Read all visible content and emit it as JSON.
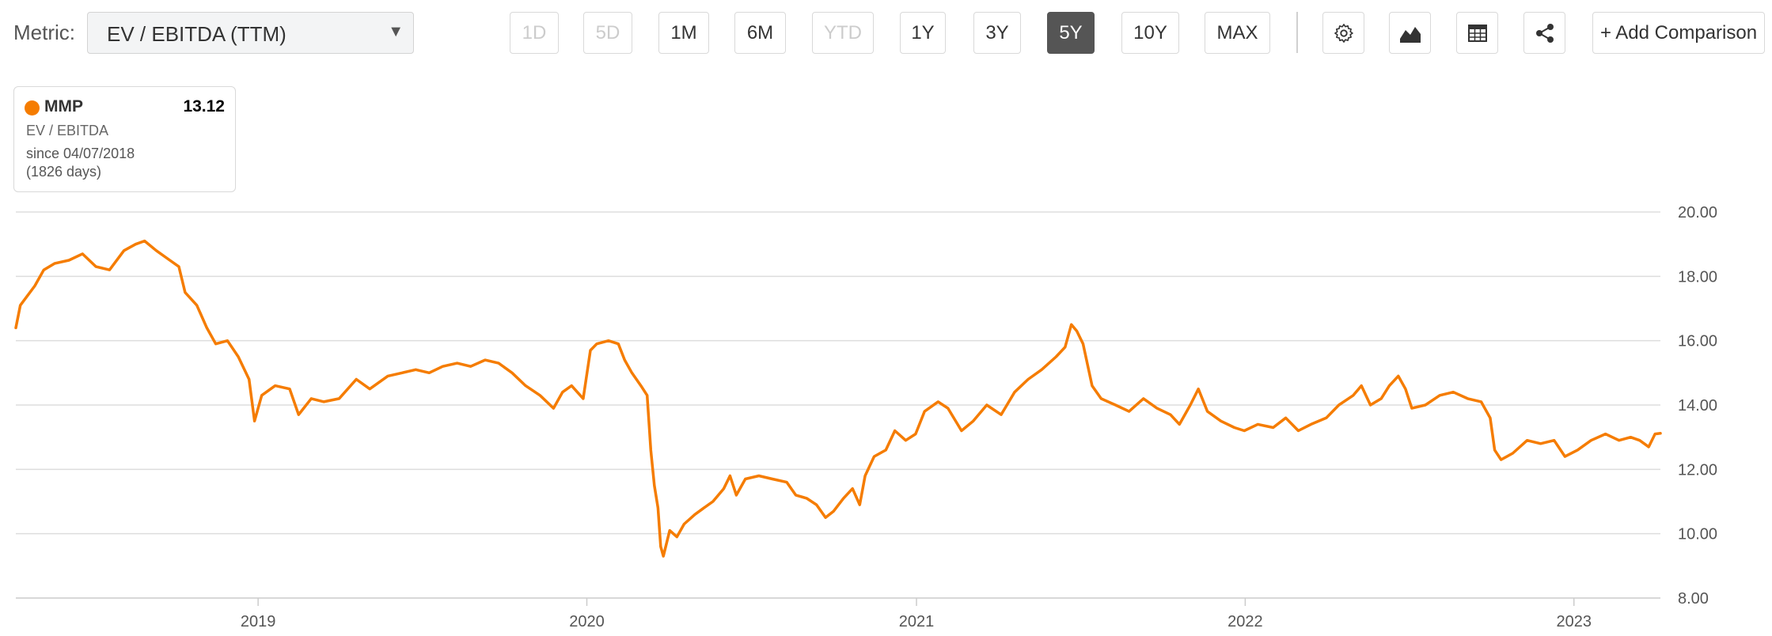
{
  "toolbar": {
    "metric_label": "Metric:",
    "metric_value": "EV / EBITDA (TTM)",
    "ranges": [
      {
        "label": "1D",
        "state": "disabled"
      },
      {
        "label": "5D",
        "state": "disabled"
      },
      {
        "label": "1M",
        "state": "normal"
      },
      {
        "label": "6M",
        "state": "normal"
      },
      {
        "label": "YTD",
        "state": "disabled"
      },
      {
        "label": "1Y",
        "state": "normal"
      },
      {
        "label": "3Y",
        "state": "normal"
      },
      {
        "label": "5Y",
        "state": "active"
      },
      {
        "label": "10Y",
        "state": "normal"
      },
      {
        "label": "MAX",
        "state": "normal"
      }
    ],
    "icons": [
      "gear-icon",
      "chart-type-icon",
      "table-icon",
      "share-icon"
    ],
    "add_comparison": "+ Add Comparison"
  },
  "legend": {
    "ticker": "MMP",
    "value": "13.12",
    "metric": "EV / EBITDA",
    "since": "since 04/07/2018",
    "days": "(1826 days)"
  },
  "colors": {
    "series": "#f57c00",
    "active_button": "#555555",
    "grid": "#dddddd"
  },
  "chart_data": {
    "type": "line",
    "title": "",
    "xlabel": "",
    "ylabel": "",
    "ylim": [
      8,
      20
    ],
    "xlim": [
      "2018-04-07",
      "2023-04-07"
    ],
    "y_ticks": [
      "8.00",
      "10.00",
      "12.00",
      "14.00",
      "16.00",
      "18.00",
      "20.00"
    ],
    "x_ticks": [
      {
        "label": "2019",
        "date": "2019-01-01"
      },
      {
        "label": "2020",
        "date": "2020-01-01"
      },
      {
        "label": "2021",
        "date": "2021-01-01"
      },
      {
        "label": "2022",
        "date": "2022-01-01"
      },
      {
        "label": "2023",
        "date": "2023-01-01"
      }
    ],
    "grid": "horizontal",
    "y_axis_position": "right",
    "legend_position": "top-left",
    "series": [
      {
        "name": "MMP",
        "points": [
          [
            "2018-04-07",
            16.4
          ],
          [
            "2018-04-12",
            17.1
          ],
          [
            "2018-04-20",
            17.4
          ],
          [
            "2018-04-28",
            17.7
          ],
          [
            "2018-05-08",
            18.2
          ],
          [
            "2018-05-20",
            18.4
          ],
          [
            "2018-06-05",
            18.5
          ],
          [
            "2018-06-20",
            18.7
          ],
          [
            "2018-07-05",
            18.3
          ],
          [
            "2018-07-20",
            18.2
          ],
          [
            "2018-08-05",
            18.8
          ],
          [
            "2018-08-18",
            19.0
          ],
          [
            "2018-08-28",
            19.1
          ],
          [
            "2018-09-10",
            18.8
          ],
          [
            "2018-09-25",
            18.5
          ],
          [
            "2018-10-05",
            18.3
          ],
          [
            "2018-10-12",
            17.5
          ],
          [
            "2018-10-25",
            17.1
          ],
          [
            "2018-11-05",
            16.4
          ],
          [
            "2018-11-15",
            15.9
          ],
          [
            "2018-11-28",
            16.0
          ],
          [
            "2018-12-10",
            15.5
          ],
          [
            "2018-12-22",
            14.8
          ],
          [
            "2018-12-28",
            13.5
          ],
          [
            "2019-01-05",
            14.3
          ],
          [
            "2019-01-20",
            14.6
          ],
          [
            "2019-02-05",
            14.5
          ],
          [
            "2019-02-15",
            13.7
          ],
          [
            "2019-03-01",
            14.2
          ],
          [
            "2019-03-15",
            14.1
          ],
          [
            "2019-04-01",
            14.2
          ],
          [
            "2019-04-20",
            14.8
          ],
          [
            "2019-05-05",
            14.5
          ],
          [
            "2019-05-25",
            14.9
          ],
          [
            "2019-06-10",
            15.0
          ],
          [
            "2019-06-25",
            15.1
          ],
          [
            "2019-07-10",
            15.0
          ],
          [
            "2019-07-25",
            15.2
          ],
          [
            "2019-08-10",
            15.3
          ],
          [
            "2019-08-25",
            15.2
          ],
          [
            "2019-09-10",
            15.4
          ],
          [
            "2019-09-25",
            15.3
          ],
          [
            "2019-10-10",
            15.0
          ],
          [
            "2019-10-25",
            14.6
          ],
          [
            "2019-11-10",
            14.3
          ],
          [
            "2019-11-25",
            13.9
          ],
          [
            "2019-12-05",
            14.4
          ],
          [
            "2019-12-15",
            14.6
          ],
          [
            "2019-12-28",
            14.2
          ],
          [
            "2020-01-05",
            15.7
          ],
          [
            "2020-01-12",
            15.9
          ],
          [
            "2020-01-25",
            16.0
          ],
          [
            "2020-02-05",
            15.9
          ],
          [
            "2020-02-12",
            15.4
          ],
          [
            "2020-02-20",
            15.0
          ],
          [
            "2020-03-01",
            14.6
          ],
          [
            "2020-03-08",
            14.3
          ],
          [
            "2020-03-12",
            12.6
          ],
          [
            "2020-03-16",
            11.5
          ],
          [
            "2020-03-20",
            10.8
          ],
          [
            "2020-03-23",
            9.6
          ],
          [
            "2020-03-26",
            9.3
          ],
          [
            "2020-04-02",
            10.1
          ],
          [
            "2020-04-10",
            9.9
          ],
          [
            "2020-04-18",
            10.3
          ],
          [
            "2020-04-30",
            10.6
          ],
          [
            "2020-05-10",
            10.8
          ],
          [
            "2020-05-20",
            11.0
          ],
          [
            "2020-06-01",
            11.4
          ],
          [
            "2020-06-08",
            11.8
          ],
          [
            "2020-06-15",
            11.2
          ],
          [
            "2020-06-25",
            11.7
          ],
          [
            "2020-07-10",
            11.8
          ],
          [
            "2020-07-25",
            11.7
          ],
          [
            "2020-08-10",
            11.6
          ],
          [
            "2020-08-20",
            11.2
          ],
          [
            "2020-09-01",
            11.1
          ],
          [
            "2020-09-12",
            10.9
          ],
          [
            "2020-09-22",
            10.5
          ],
          [
            "2020-10-01",
            10.7
          ],
          [
            "2020-10-12",
            11.1
          ],
          [
            "2020-10-22",
            11.4
          ],
          [
            "2020-10-30",
            10.9
          ],
          [
            "2020-11-05",
            11.8
          ],
          [
            "2020-11-15",
            12.4
          ],
          [
            "2020-11-28",
            12.6
          ],
          [
            "2020-12-08",
            13.2
          ],
          [
            "2020-12-20",
            12.9
          ],
          [
            "2020-12-31",
            13.1
          ],
          [
            "2021-01-10",
            13.8
          ],
          [
            "2021-01-25",
            14.1
          ],
          [
            "2021-02-05",
            13.9
          ],
          [
            "2021-02-20",
            13.2
          ],
          [
            "2021-03-05",
            13.5
          ],
          [
            "2021-03-20",
            14.0
          ],
          [
            "2021-04-05",
            13.7
          ],
          [
            "2021-04-20",
            14.4
          ],
          [
            "2021-05-05",
            14.8
          ],
          [
            "2021-05-20",
            15.1
          ],
          [
            "2021-06-05",
            15.5
          ],
          [
            "2021-06-15",
            15.8
          ],
          [
            "2021-06-22",
            16.5
          ],
          [
            "2021-06-28",
            16.3
          ],
          [
            "2021-07-05",
            15.9
          ],
          [
            "2021-07-15",
            14.6
          ],
          [
            "2021-07-25",
            14.2
          ],
          [
            "2021-08-10",
            14.0
          ],
          [
            "2021-08-25",
            13.8
          ],
          [
            "2021-09-10",
            14.2
          ],
          [
            "2021-09-25",
            13.9
          ],
          [
            "2021-10-10",
            13.7
          ],
          [
            "2021-10-20",
            13.4
          ],
          [
            "2021-11-01",
            14.0
          ],
          [
            "2021-11-10",
            14.5
          ],
          [
            "2021-11-20",
            13.8
          ],
          [
            "2021-12-05",
            13.5
          ],
          [
            "2021-12-20",
            13.3
          ],
          [
            "2021-12-31",
            13.2
          ],
          [
            "2022-01-15",
            13.4
          ],
          [
            "2022-02-01",
            13.3
          ],
          [
            "2022-02-15",
            13.6
          ],
          [
            "2022-03-01",
            13.2
          ],
          [
            "2022-03-15",
            13.4
          ],
          [
            "2022-04-01",
            13.6
          ],
          [
            "2022-04-15",
            14.0
          ],
          [
            "2022-05-01",
            14.3
          ],
          [
            "2022-05-10",
            14.6
          ],
          [
            "2022-05-20",
            14.0
          ],
          [
            "2022-06-01",
            14.2
          ],
          [
            "2022-06-10",
            14.6
          ],
          [
            "2022-06-20",
            14.9
          ],
          [
            "2022-06-28",
            14.5
          ],
          [
            "2022-07-05",
            13.9
          ],
          [
            "2022-07-20",
            14.0
          ],
          [
            "2022-08-05",
            14.3
          ],
          [
            "2022-08-20",
            14.4
          ],
          [
            "2022-09-05",
            14.2
          ],
          [
            "2022-09-20",
            14.1
          ],
          [
            "2022-09-30",
            13.6
          ],
          [
            "2022-10-05",
            12.6
          ],
          [
            "2022-10-12",
            12.3
          ],
          [
            "2022-10-25",
            12.5
          ],
          [
            "2022-11-10",
            12.9
          ],
          [
            "2022-11-25",
            12.8
          ],
          [
            "2022-12-10",
            12.9
          ],
          [
            "2022-12-22",
            12.4
          ],
          [
            "2023-01-05",
            12.6
          ],
          [
            "2023-01-20",
            12.9
          ],
          [
            "2023-02-05",
            13.1
          ],
          [
            "2023-02-20",
            12.9
          ],
          [
            "2023-03-05",
            13.0
          ],
          [
            "2023-03-15",
            12.9
          ],
          [
            "2023-03-25",
            12.7
          ],
          [
            "2023-04-01",
            13.1
          ],
          [
            "2023-04-07",
            13.12
          ]
        ]
      }
    ]
  }
}
